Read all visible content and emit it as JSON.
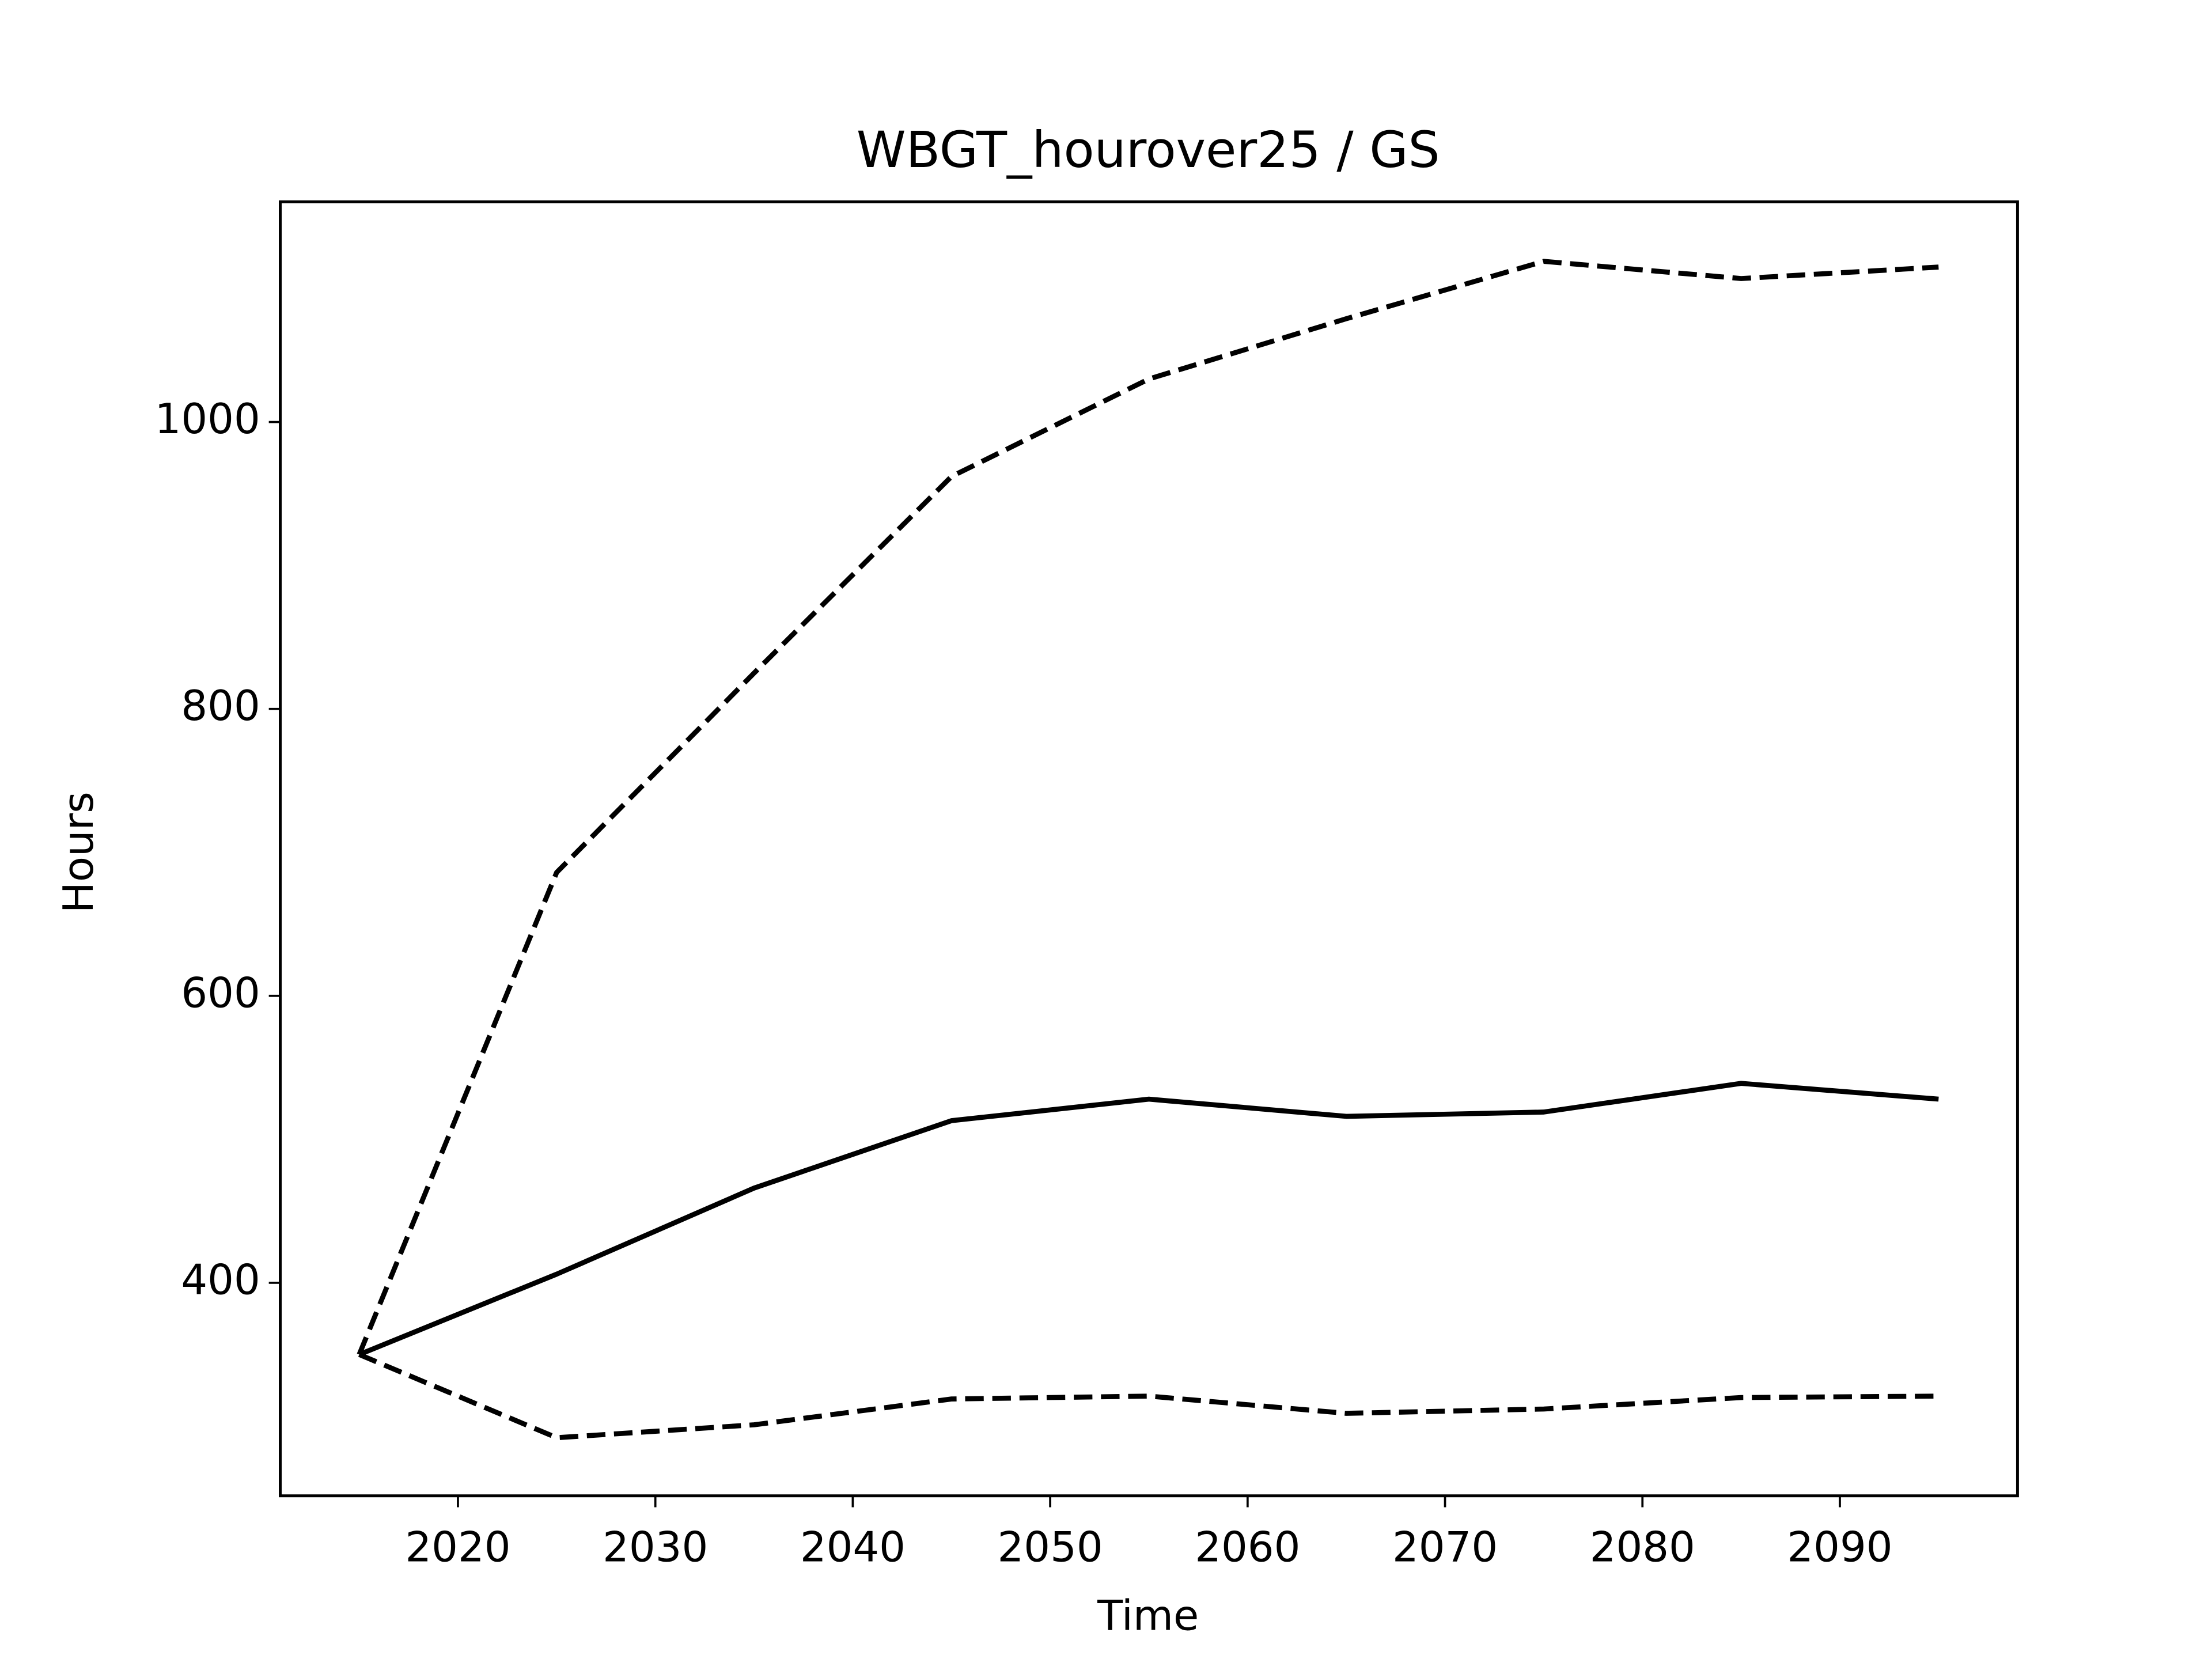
{
  "chart_data": {
    "type": "line",
    "title": "WBGT_hourover25 / GS",
    "xlabel": "Time",
    "ylabel": "Hours",
    "x": [
      2015,
      2025,
      2035,
      2045,
      2055,
      2065,
      2075,
      2085,
      2095
    ],
    "series": [
      {
        "color": "#000000",
        "linestyle": "solid",
        "values": [
          350,
          406,
          466,
          513,
          528,
          516,
          519,
          539,
          528
        ]
      },
      {
        "color": "#000000",
        "linestyle": "dashed",
        "values": [
          350,
          686,
          825,
          962,
          1030,
          1072,
          1112,
          1100,
          1108
        ]
      },
      {
        "color": "#000000",
        "linestyle": "dashed",
        "values": [
          350,
          292,
          301,
          319,
          321,
          309,
          312,
          320,
          321
        ]
      }
    ],
    "xlim": [
      2011,
      2099
    ],
    "ylim": [
      251.5,
      1153.5
    ],
    "xticks": [
      2020,
      2030,
      2040,
      2050,
      2060,
      2070,
      2080,
      2090
    ],
    "yticks": [
      400,
      600,
      800,
      1000
    ],
    "grid": false
  }
}
